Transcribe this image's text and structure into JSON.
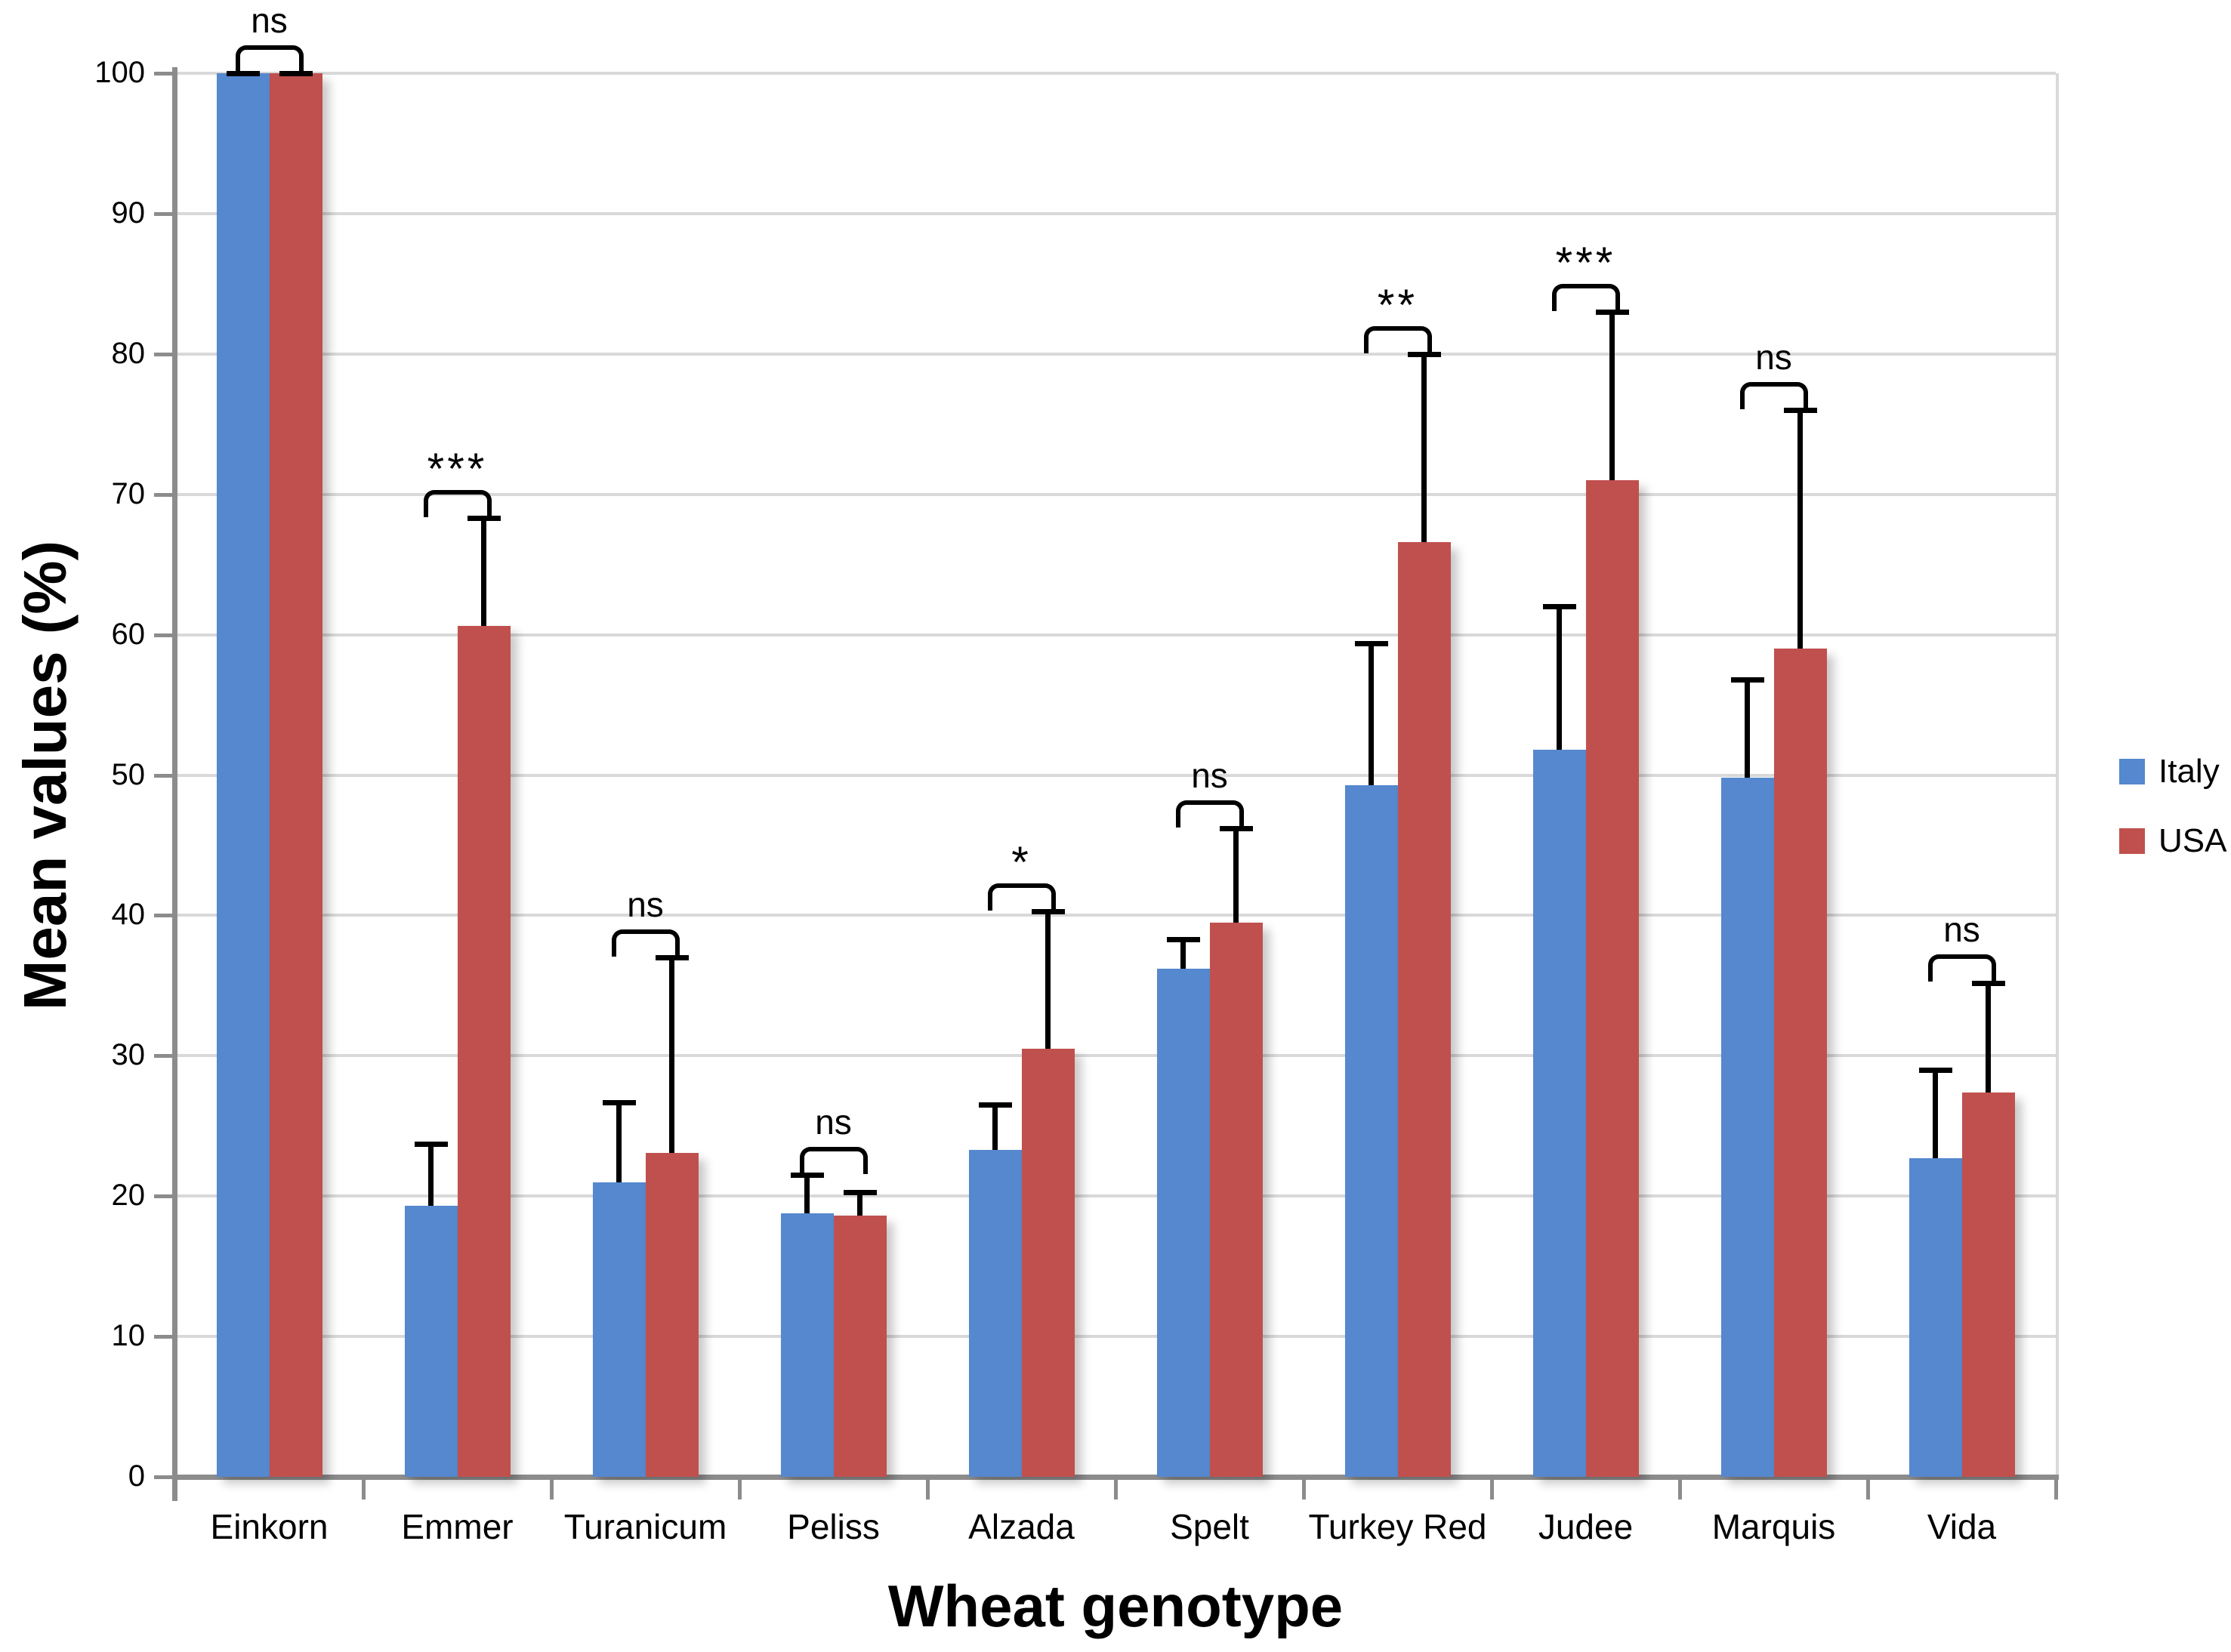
{
  "figure": {
    "ylabel": "Mean values (%)",
    "xlabel": "Wheat genotype"
  },
  "chart_data": {
    "type": "bar",
    "title": "",
    "xlabel": "Wheat genotype",
    "ylabel": "Mean values (%)",
    "ylim": [
      0,
      100
    ],
    "ytick_step": 10,
    "grid": true,
    "legend_position": "middle-right",
    "categories": [
      "Einkorn",
      "Emmer",
      "Turanicum",
      "Peliss",
      "Alzada",
      "Spelt",
      "Turkey Red",
      "Judee",
      "Marquis",
      "Vida"
    ],
    "series": [
      {
        "name": "Italy",
        "color": "#5588CE",
        "values": [
          100,
          19.3,
          21.0,
          18.8,
          23.3,
          36.2,
          49.3,
          51.8,
          49.8,
          22.7
        ],
        "errors_plus": [
          0,
          4.4,
          5.7,
          2.7,
          3.2,
          2.1,
          10.1,
          10.2,
          7.0,
          6.3
        ]
      },
      {
        "name": "USA",
        "color": "#C0504E",
        "values": [
          100,
          60.6,
          23.1,
          18.6,
          30.5,
          39.5,
          66.6,
          71.0,
          59.0,
          27.4
        ],
        "errors_plus": [
          0,
          7.7,
          13.9,
          1.7,
          9.8,
          6.7,
          13.4,
          12.0,
          17.0,
          7.8
        ]
      }
    ],
    "significance": [
      "ns",
      "***",
      "ns",
      "ns",
      "*",
      "ns",
      "**",
      "***",
      "ns",
      "ns"
    ],
    "colors": {
      "grid": "#d9d9d9",
      "axis": "#8c8c8c",
      "error": "#000000"
    }
  }
}
